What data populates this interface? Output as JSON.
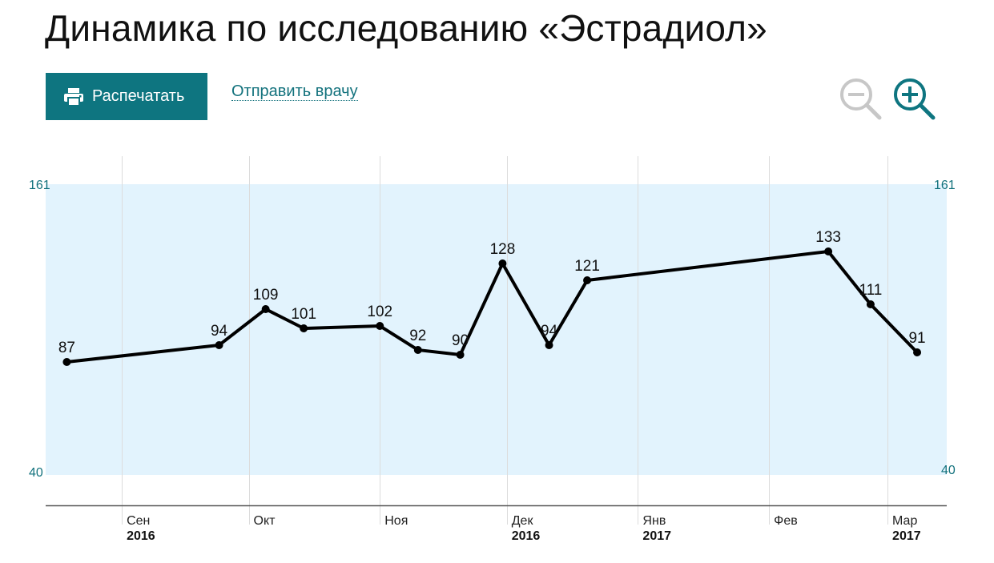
{
  "page": {
    "title": "Динамика по исследованию «Эстрадиол»"
  },
  "toolbar": {
    "print_label": "Распечатать",
    "send_label": "Отправить врачу",
    "print_icon": "printer-icon",
    "zoom_out_icon": "zoom-out-icon",
    "zoom_in_icon": "zoom-in-icon"
  },
  "colors": {
    "accent": "#0e7580",
    "reference_band": "#e2f3fd",
    "line": "#000000"
  },
  "chart_data": {
    "type": "line",
    "title": "",
    "xlabel": "",
    "ylabel": "",
    "reference_range": {
      "low": 40,
      "high": 161,
      "low_label": "40",
      "high_label": "161"
    },
    "ylim": [
      29,
      172
    ],
    "xlim": [
      "2016-08-14",
      "2017-03-15"
    ],
    "grid": "vertical",
    "points": [
      {
        "date": "2016-08-19",
        "value": 87,
        "label": "87"
      },
      {
        "date": "2016-09-24",
        "value": 94,
        "label": "94"
      },
      {
        "date": "2016-10-05",
        "value": 109,
        "label": "109"
      },
      {
        "date": "2016-10-14",
        "value": 101,
        "label": "101"
      },
      {
        "date": "2016-11-01",
        "value": 102,
        "label": "102"
      },
      {
        "date": "2016-11-10",
        "value": 92,
        "label": "92"
      },
      {
        "date": "2016-11-20",
        "value": 90,
        "label": "90"
      },
      {
        "date": "2016-11-30",
        "value": 128,
        "label": "128"
      },
      {
        "date": "2016-12-11",
        "value": 94,
        "label": "94"
      },
      {
        "date": "2016-12-20",
        "value": 121,
        "label": "121"
      },
      {
        "date": "2017-02-15",
        "value": 133,
        "label": "133"
      },
      {
        "date": "2017-02-25",
        "value": 111,
        "label": "111"
      },
      {
        "date": "2017-03-08",
        "value": 91,
        "label": "91"
      }
    ],
    "month_ticks": [
      {
        "date": "2016-09-01",
        "label": "Сен",
        "year": "2016"
      },
      {
        "date": "2016-10-01",
        "label": "Окт",
        "year": ""
      },
      {
        "date": "2016-11-01",
        "label": "Ноя",
        "year": ""
      },
      {
        "date": "2016-12-01",
        "label": "Дек",
        "year": "2016"
      },
      {
        "date": "2017-01-01",
        "label": "Янв",
        "year": "2017"
      },
      {
        "date": "2017-02-01",
        "label": "Фев",
        "year": ""
      },
      {
        "date": "2017-03-01",
        "label": "Мар",
        "year": "2017"
      }
    ]
  }
}
